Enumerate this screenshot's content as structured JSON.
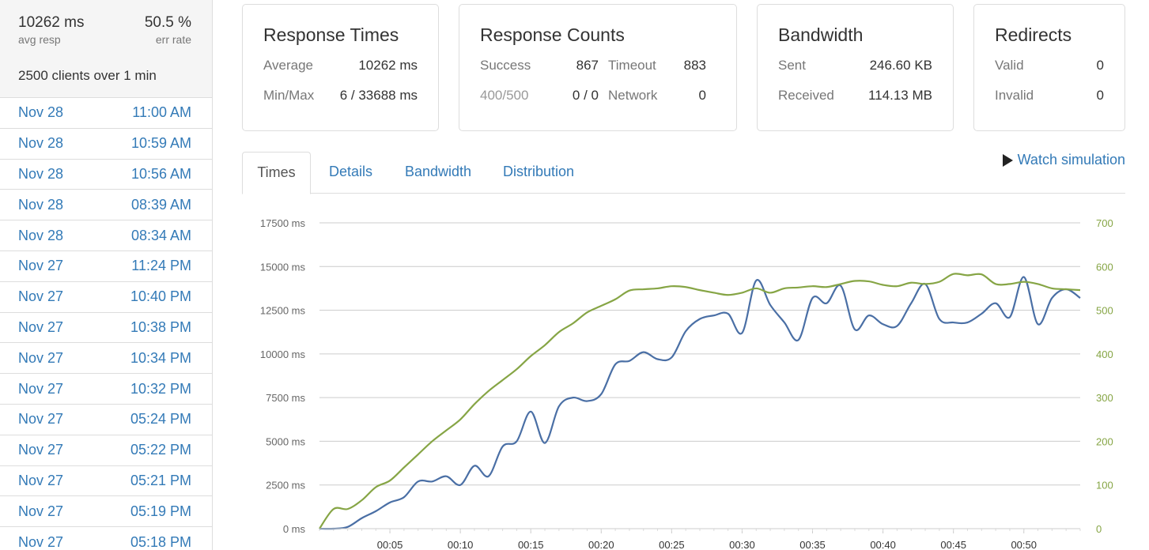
{
  "sidebar": {
    "summary": {
      "avg_resp_value": "10262 ms",
      "avg_resp_label": "avg resp",
      "err_rate_value": "50.5 %",
      "err_rate_label": "err rate",
      "clients_text": "2500 clients over 1 min"
    },
    "runs": [
      {
        "date": "Nov 28",
        "time": "11:00 AM"
      },
      {
        "date": "Nov 28",
        "time": "10:59 AM"
      },
      {
        "date": "Nov 28",
        "time": "10:56 AM"
      },
      {
        "date": "Nov 28",
        "time": "08:39 AM"
      },
      {
        "date": "Nov 28",
        "time": "08:34 AM"
      },
      {
        "date": "Nov 27",
        "time": "11:24 PM"
      },
      {
        "date": "Nov 27",
        "time": "10:40 PM"
      },
      {
        "date": "Nov 27",
        "time": "10:38 PM"
      },
      {
        "date": "Nov 27",
        "time": "10:34 PM"
      },
      {
        "date": "Nov 27",
        "time": "10:32 PM"
      },
      {
        "date": "Nov 27",
        "time": "05:24 PM"
      },
      {
        "date": "Nov 27",
        "time": "05:22 PM"
      },
      {
        "date": "Nov 27",
        "time": "05:21 PM"
      },
      {
        "date": "Nov 27",
        "time": "05:19 PM"
      },
      {
        "date": "Nov 27",
        "time": "05:18 PM"
      }
    ]
  },
  "panels": {
    "response_times": {
      "title": "Response Times",
      "average_label": "Average",
      "average_value": "10262 ms",
      "minmax_label": "Min/Max",
      "minmax_value": "6 / 33688 ms"
    },
    "response_counts": {
      "title": "Response Counts",
      "success_label": "Success",
      "success_value": "867",
      "timeout_label": "Timeout",
      "timeout_value": "883",
      "http_label": "400/500",
      "http_value": "0 / 0",
      "network_label": "Network",
      "network_value": "0"
    },
    "bandwidth": {
      "title": "Bandwidth",
      "sent_label": "Sent",
      "sent_value": "246.60 KB",
      "received_label": "Received",
      "received_value": "114.13 MB"
    },
    "redirects": {
      "title": "Redirects",
      "valid_label": "Valid",
      "valid_value": "0",
      "invalid_label": "Invalid",
      "invalid_value": "0"
    }
  },
  "tabs": {
    "times": "Times",
    "details": "Details",
    "bandwidth": "Bandwidth",
    "distribution": "Distribution",
    "active": "Times",
    "watch_simulation": "Watch simulation"
  },
  "chart_data": {
    "type": "line",
    "title": "",
    "xlabel": "",
    "ylabel": "",
    "xlim": [
      0,
      54
    ],
    "ylim_left": [
      0,
      17500
    ],
    "ylim_right": [
      0,
      700
    ],
    "grid": true,
    "x_ticks": [
      "00:05",
      "00:10",
      "00:15",
      "00:20",
      "00:25",
      "00:30",
      "00:35",
      "00:40",
      "00:45",
      "00:50"
    ],
    "y_ticks_left": [
      "0 ms",
      "2500 ms",
      "5000 ms",
      "7500 ms",
      "10000 ms",
      "12500 ms",
      "15000 ms",
      "17500 ms"
    ],
    "y_ticks_right": [
      "0",
      "100",
      "200",
      "300",
      "400",
      "500",
      "600",
      "700"
    ],
    "colors": {
      "left": "#4a6fa5",
      "right": "#86a545",
      "grid": "#cccccc",
      "axis_text_left": "#666666",
      "axis_text_right": "#86a545"
    },
    "series": [
      {
        "axis": "left",
        "color": "#4a6fa5",
        "x": [
          0,
          1,
          2,
          3,
          4,
          5,
          6,
          7,
          8,
          9,
          10,
          11,
          12,
          13,
          14,
          15,
          16,
          17,
          18,
          19,
          20,
          21,
          22,
          23,
          24,
          25,
          26,
          27,
          28,
          29,
          30,
          31,
          32,
          33,
          34,
          35,
          36,
          37,
          38,
          39,
          40,
          41,
          42,
          43,
          44,
          45,
          46,
          47,
          48,
          49,
          50,
          51,
          52,
          53,
          54
        ],
        "values": [
          0,
          0,
          100,
          600,
          1000,
          1500,
          1800,
          2700,
          2700,
          3000,
          2500,
          3600,
          3000,
          4700,
          5000,
          6700,
          4900,
          7000,
          7500,
          7300,
          7700,
          9400,
          9600,
          10100,
          9700,
          9800,
          11300,
          12000,
          12200,
          12300,
          11200,
          14200,
          12800,
          11800,
          10800,
          13200,
          12900,
          13900,
          11400,
          12200,
          11700,
          11600,
          12900,
          14000,
          12000,
          11800,
          11800,
          12300,
          12900,
          12100,
          14400,
          11700,
          13200,
          13700,
          13200
        ]
      },
      {
        "axis": "right",
        "color": "#86a545",
        "x": [
          0,
          1,
          2,
          3,
          4,
          5,
          6,
          7,
          8,
          9,
          10,
          11,
          12,
          13,
          14,
          15,
          16,
          17,
          18,
          19,
          20,
          21,
          22,
          23,
          24,
          25,
          26,
          27,
          28,
          29,
          30,
          31,
          32,
          33,
          34,
          35,
          36,
          37,
          38,
          39,
          40,
          41,
          42,
          43,
          44,
          45,
          46,
          47,
          48,
          49,
          50,
          51,
          52,
          53,
          54
        ],
        "values": [
          0,
          45,
          45,
          65,
          95,
          110,
          140,
          170,
          200,
          225,
          250,
          285,
          315,
          340,
          365,
          395,
          420,
          450,
          470,
          495,
          510,
          525,
          545,
          548,
          550,
          555,
          553,
          546,
          540,
          535,
          540,
          550,
          540,
          550,
          552,
          555,
          553,
          560,
          567,
          566,
          558,
          555,
          563,
          560,
          565,
          583,
          580,
          582,
          560,
          560,
          565,
          560,
          550,
          548,
          546
        ]
      }
    ]
  }
}
